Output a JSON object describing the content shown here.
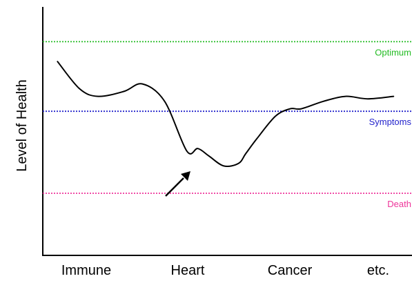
{
  "chart_data": {
    "type": "line",
    "title": "",
    "xlabel": "",
    "ylabel": "Level of Health",
    "categories": [
      "Immune",
      "Heart",
      "Cancer",
      "etc."
    ],
    "ylim": [
      0,
      100
    ],
    "grid": false,
    "reference_lines": [
      {
        "label": "Optimum",
        "y": 86,
        "color": "#22bb22"
      },
      {
        "label": "Symptoms",
        "y": 58,
        "color": "#2222cc"
      },
      {
        "label": "Death",
        "y": 25,
        "color": "#ee3399"
      }
    ],
    "series": [
      {
        "color": "#000000",
        "x": [
          0.04,
          0.1,
          0.15,
          0.22,
          0.27,
          0.33,
          0.39,
          0.42,
          0.45,
          0.49,
          0.53,
          0.55,
          0.58,
          0.63,
          0.67,
          0.7,
          0.76,
          0.82,
          0.88,
          0.95
        ],
        "y": [
          78,
          67,
          64,
          66,
          69,
          62,
          42,
          43,
          40,
          36,
          37,
          41,
          47,
          56,
          59,
          59,
          62,
          64,
          63,
          64
        ]
      }
    ],
    "annotations": [
      {
        "type": "arrow",
        "description": "arrow pointing to dip in Heart region"
      }
    ]
  }
}
